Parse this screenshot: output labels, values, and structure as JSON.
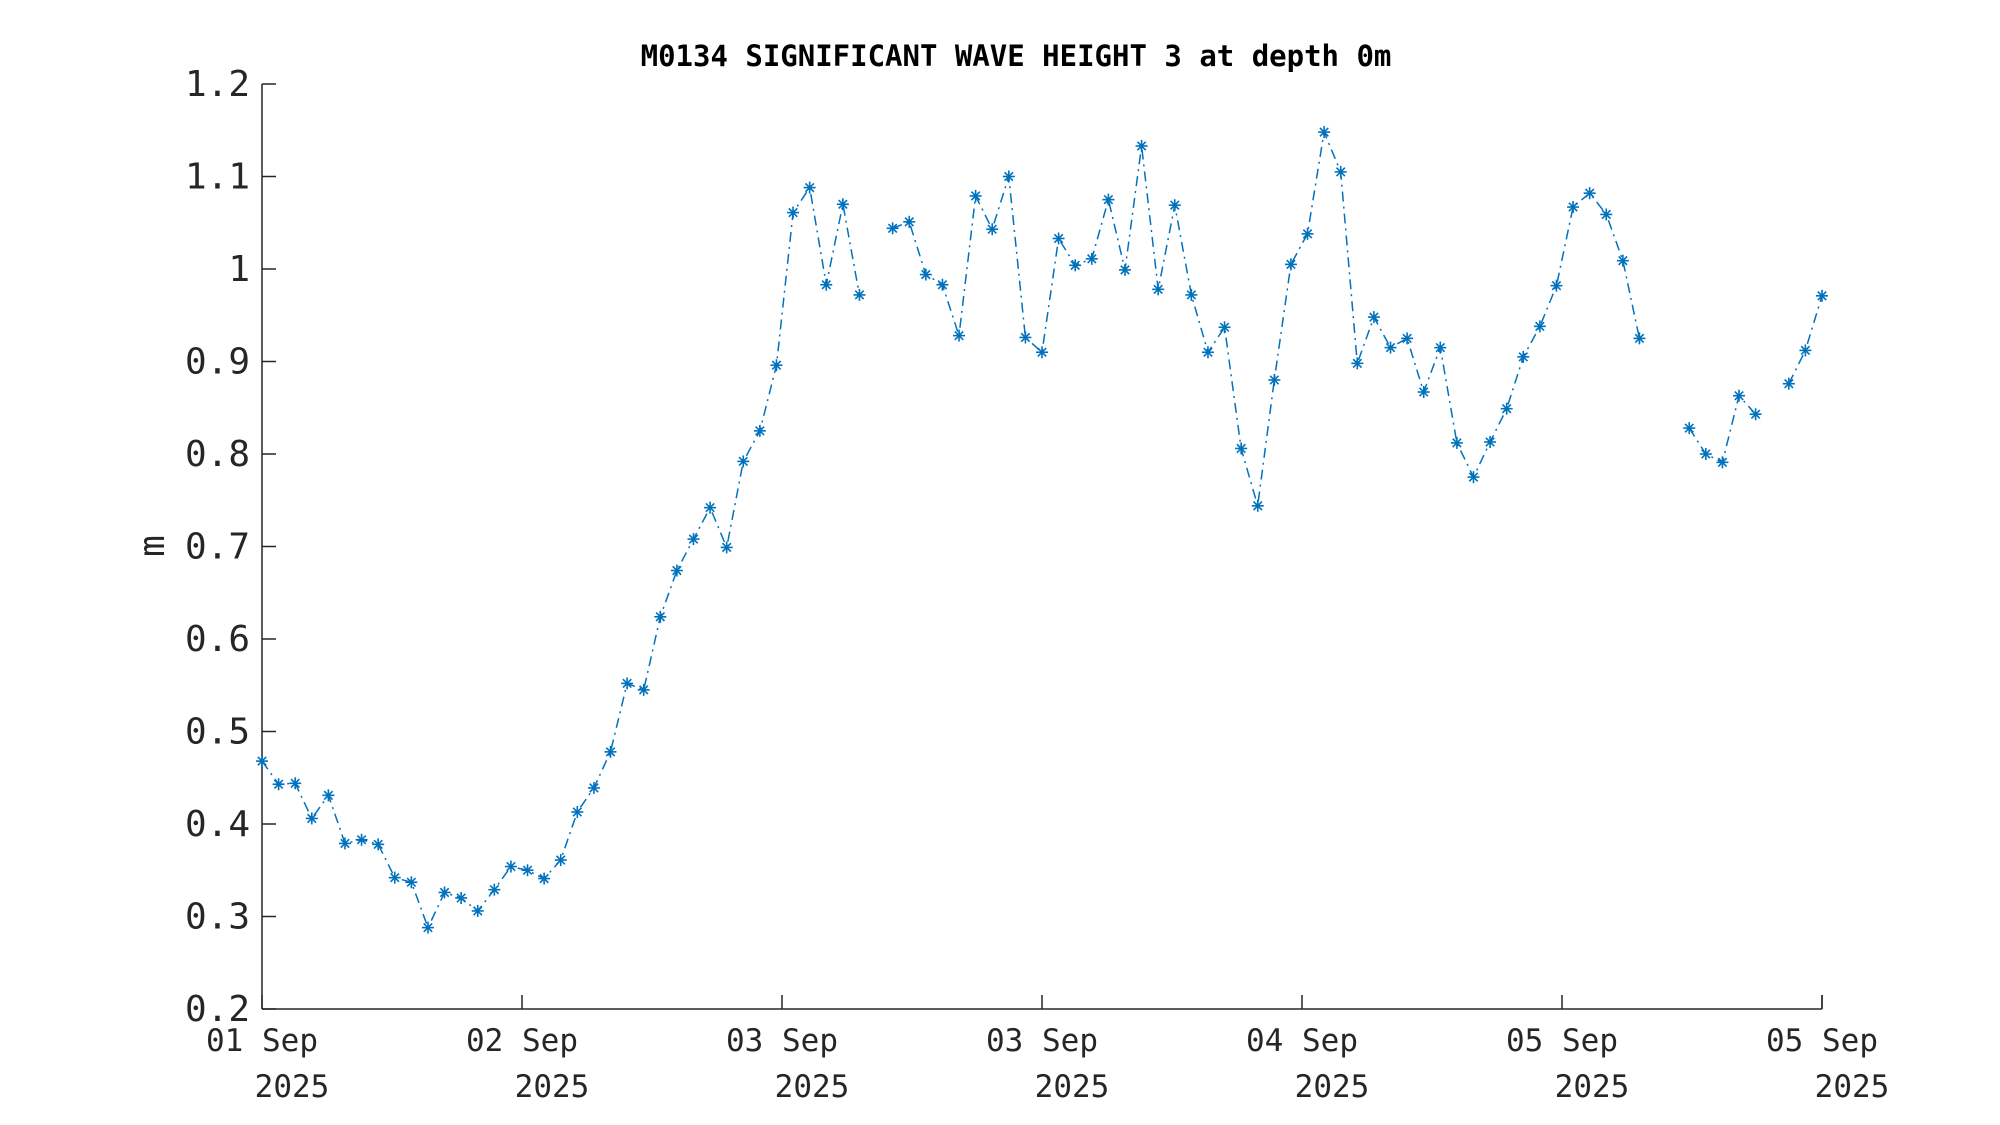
{
  "chart_data": {
    "type": "line",
    "title": "M0134 SIGNIFICANT WAVE HEIGHT 3 at depth 0m",
    "xlabel": "",
    "ylabel": "m",
    "ylim": [
      0.2,
      1.2
    ],
    "yticks": [
      "0.2",
      "0.3",
      "0.4",
      "0.5",
      "0.6",
      "0.7",
      "0.8",
      "0.9",
      "1",
      "1.1",
      "1.2"
    ],
    "xticks": [
      {
        "day": "01 Sep",
        "year": "2025"
      },
      {
        "day": "02 Sep",
        "year": "2025"
      },
      {
        "day": "03 Sep",
        "year": "2025"
      },
      {
        "day": "03 Sep",
        "year": "2025"
      },
      {
        "day": "04 Sep",
        "year": "2025"
      },
      {
        "day": "05 Sep",
        "year": "2025"
      },
      {
        "day": "05 Sep",
        "year": "2025"
      }
    ],
    "grid": false,
    "line_style": "dash-dot",
    "marker": "asterisk",
    "color": "#0072BD",
    "series": [
      {
        "values": [
          0.468,
          0.443,
          0.444,
          0.406,
          0.431,
          0.379,
          0.383,
          0.378,
          0.342,
          0.337,
          0.288,
          0.326,
          0.32,
          0.306,
          0.329,
          0.354,
          0.35,
          0.341,
          0.361,
          0.413,
          0.439,
          0.478,
          0.552,
          0.545,
          0.624,
          0.674,
          0.708,
          0.742,
          0.699,
          0.792,
          0.825,
          0.896,
          1.061,
          1.088,
          0.983,
          1.07,
          0.972,
          null,
          1.044,
          1.051,
          0.994,
          0.983,
          0.928,
          1.079,
          1.043,
          1.1,
          0.926,
          0.91,
          1.033,
          1.004,
          1.011,
          1.075,
          0.999,
          1.133,
          0.978,
          1.069,
          0.972,
          0.91,
          0.937,
          0.806,
          0.744,
          0.88,
          1.005,
          1.038,
          1.148,
          1.105,
          0.898,
          0.948,
          0.915,
          0.925,
          0.867,
          0.915,
          0.812,
          0.775,
          0.813,
          0.849,
          0.905,
          0.938,
          0.982,
          1.067,
          1.082,
          1.059,
          1.009,
          0.925,
          null,
          null,
          0.828,
          0.8,
          0.791,
          0.863,
          0.843,
          null,
          0.876,
          0.912,
          0.971
        ]
      }
    ]
  }
}
